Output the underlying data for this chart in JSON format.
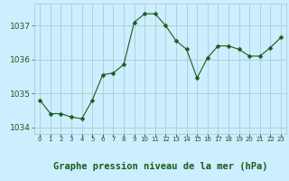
{
  "x": [
    0,
    1,
    2,
    3,
    4,
    5,
    6,
    7,
    8,
    9,
    10,
    11,
    12,
    13,
    14,
    15,
    16,
    17,
    18,
    19,
    20,
    21,
    22,
    23
  ],
  "y": [
    1034.8,
    1034.4,
    1034.4,
    1034.3,
    1034.25,
    1034.8,
    1035.55,
    1035.6,
    1035.85,
    1037.1,
    1037.35,
    1037.35,
    1037.0,
    1036.55,
    1036.3,
    1035.45,
    1036.05,
    1036.4,
    1036.4,
    1036.3,
    1036.1,
    1036.1,
    1036.35,
    1036.65
  ],
  "line_color": "#1a5c1a",
  "marker": "D",
  "marker_size": 2.5,
  "bg_color": "#cceeff",
  "grid_color": "#aaccd0",
  "xlabel": "Graphe pression niveau de la mer (hPa)",
  "xlabel_color": "#1a5c1a",
  "xlabel_fontsize": 7.5,
  "tick_color": "#1a5c1a",
  "tick_fontsize": 6.5,
  "ylim": [
    1033.8,
    1037.65
  ],
  "yticks": [
    1034,
    1035,
    1036,
    1037
  ],
  "xlim": [
    -0.5,
    23.5
  ],
  "xticks": [
    0,
    1,
    2,
    3,
    4,
    5,
    6,
    7,
    8,
    9,
    10,
    11,
    12,
    13,
    14,
    15,
    16,
    17,
    18,
    19,
    20,
    21,
    22,
    23
  ],
  "xtick_labels": [
    "0",
    "1",
    "2",
    "3",
    "4",
    "5",
    "6",
    "7",
    "8",
    "9",
    "10",
    "11",
    "12",
    "13",
    "14",
    "15",
    "16",
    "17",
    "18",
    "19",
    "20",
    "21",
    "22",
    "23"
  ]
}
